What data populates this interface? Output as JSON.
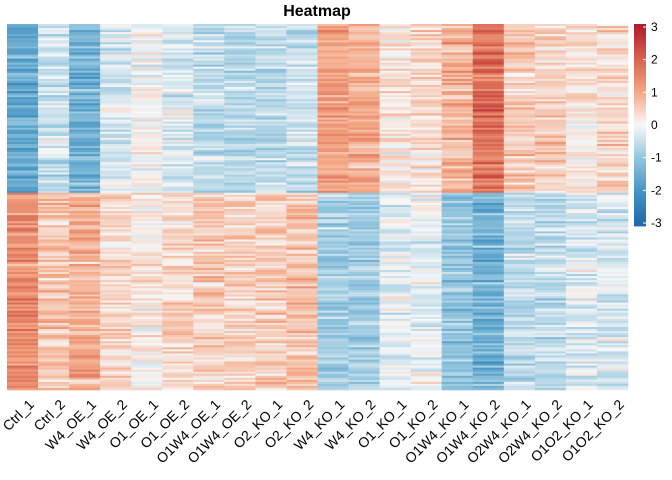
{
  "chart_data": {
    "type": "heatmap",
    "title": "Heatmap",
    "columns": [
      "Ctrl_1",
      "Ctrl_2",
      "W4_OE_1",
      "W4_OE_2",
      "O1_OE_1",
      "O1_OE_2",
      "O1W4_OE_1",
      "O1W4_OE_2",
      "O2_KO_1",
      "O2_KO_2",
      "W4_KO_1",
      "W4_KO_2",
      "O1_KO_1",
      "O1_KO_2",
      "O1W4_KO_1",
      "O1W4_KO_2",
      "O2W4_KO_1",
      "O2W4_KO_2",
      "O1O2_KO_1",
      "O1O2_KO_2"
    ],
    "row_clusters": [
      {
        "name": "",
        "share": 0.46,
        "mean_values": [
          -1.6,
          -0.4,
          -1.4,
          -0.3,
          0.0,
          -0.3,
          -0.6,
          -0.6,
          -0.6,
          -0.5,
          1.1,
          0.9,
          0.2,
          0.3,
          0.8,
          1.7,
          0.6,
          0.5,
          0.2,
          0.4
        ]
      },
      {
        "name": "",
        "share": 0.54,
        "mean_values": [
          1.3,
          0.6,
          0.9,
          0.4,
          0.2,
          0.4,
          0.5,
          0.5,
          0.5,
          0.6,
          -0.8,
          -0.8,
          -0.2,
          -0.2,
          -1.0,
          -1.4,
          -0.6,
          -0.5,
          -0.3,
          -0.3
        ]
      }
    ],
    "legend": {
      "min": -3,
      "max": 3,
      "ticks": [
        "3",
        "2",
        "1",
        "0",
        "-1",
        "-2",
        "-3"
      ],
      "position": "right"
    },
    "colors": {
      "low": "#2166ac",
      "mid": "#f7f7f7",
      "high": "#b2182b"
    }
  }
}
